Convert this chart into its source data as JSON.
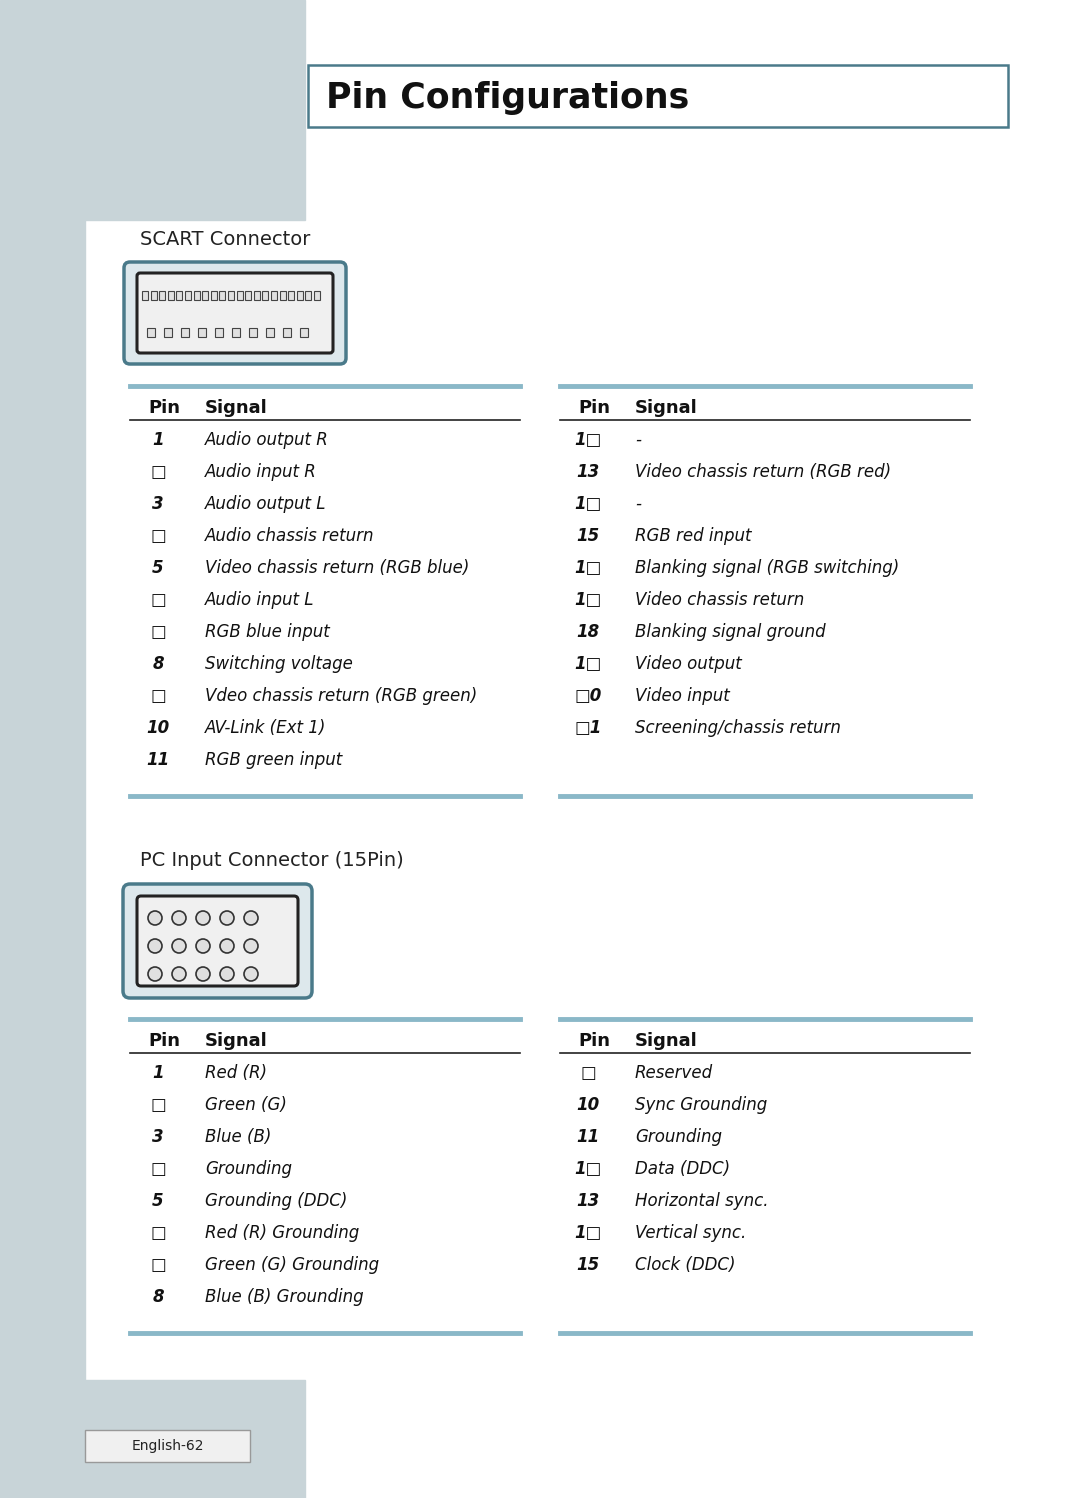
{
  "title": "Pin Configurations",
  "bg_color": "#ffffff",
  "sidebar_top_color": "#c8d4d8",
  "sidebar_bottom_color": "#c8d4d8",
  "scart_label": "SCART Connector",
  "pc_label": "PC Input Connector (15Pin)",
  "footer": "English-62",
  "title_box_border": "#4a7a8a",
  "scart_left": [
    [
      "1",
      "Audio output R"
    ],
    [
      "□",
      "Audio input R"
    ],
    [
      "3",
      "Audio output L"
    ],
    [
      "□",
      "Audio chassis return"
    ],
    [
      "5",
      "Video chassis return (RGB blue)"
    ],
    [
      "□",
      "Audio input L"
    ],
    [
      "□",
      "RGB blue input"
    ],
    [
      "8",
      "Switching voltage"
    ],
    [
      "□",
      "Vdeo chassis return (RGB green)"
    ],
    [
      "10",
      "AV-Link (Ext 1)"
    ],
    [
      "11",
      "RGB green input"
    ]
  ],
  "scart_right": [
    [
      "1□",
      "-"
    ],
    [
      "13",
      "Video chassis return (RGB red)"
    ],
    [
      "1□",
      "-"
    ],
    [
      "15",
      "RGB red input"
    ],
    [
      "1□",
      "Blanking signal (RGB switching)"
    ],
    [
      "1□",
      "Video chassis return"
    ],
    [
      "18",
      "Blanking signal ground"
    ],
    [
      "1□",
      "Video output"
    ],
    [
      "□0",
      "Video input"
    ],
    [
      "□1",
      "Screening/chassis return"
    ]
  ],
  "pc_left": [
    [
      "1",
      "Red (R)"
    ],
    [
      "□",
      "Green (G)"
    ],
    [
      "3",
      "Blue (B)"
    ],
    [
      "□",
      "Grounding"
    ],
    [
      "5",
      "Grounding (DDC)"
    ],
    [
      "□",
      "Red (R) Grounding"
    ],
    [
      "□",
      "Green (G) Grounding"
    ],
    [
      "8",
      "Blue (B) Grounding"
    ]
  ],
  "pc_right": [
    [
      "□",
      "Reserved"
    ],
    [
      "10",
      "Sync Grounding"
    ],
    [
      "11",
      "Grounding"
    ],
    [
      "1□",
      "Data (DDC)"
    ],
    [
      "13",
      "Horizontal sync."
    ],
    [
      "1□",
      "Vertical sync."
    ],
    [
      "15",
      "Clock (DDC)"
    ]
  ]
}
